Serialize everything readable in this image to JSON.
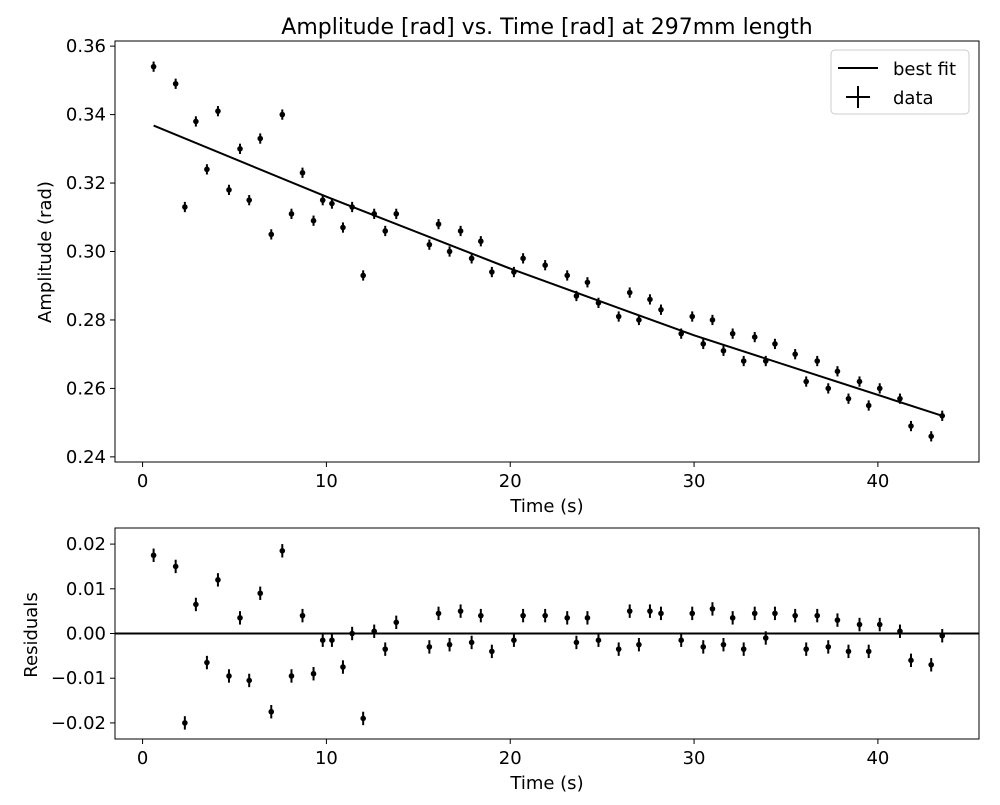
{
  "chart_data": [
    {
      "type": "scatter",
      "panel": "main",
      "title": "Amplitude [rad] vs. Time [rad] at 297mm length",
      "xlabel": "Time (s)",
      "ylabel": "Amplitude (rad)",
      "xlim": [
        -1.5,
        45.5
      ],
      "ylim": [
        0.2385,
        0.3615
      ],
      "xticks": [
        0,
        10,
        20,
        30,
        40
      ],
      "yticks": [
        0.24,
        0.26,
        0.28,
        0.3,
        0.32,
        0.34,
        0.36
      ],
      "ytick_labels": [
        "0.24",
        "0.26",
        "0.28",
        "0.30",
        "0.32",
        "0.34",
        "0.36"
      ],
      "legend": {
        "position": "top-right",
        "entries": [
          "best fit",
          "data"
        ]
      },
      "series": [
        {
          "name": "data",
          "kind": "errorbar",
          "color": "#000000",
          "yerr": 0.0015,
          "x": [
            0.6,
            1.8,
            2.3,
            2.9,
            3.5,
            4.1,
            4.7,
            5.3,
            5.8,
            6.4,
            7.0,
            7.6,
            8.1,
            8.7,
            9.3,
            9.8,
            10.3,
            10.9,
            11.4,
            12.0,
            12.6,
            13.2,
            13.8,
            15.6,
            16.1,
            16.7,
            17.3,
            17.9,
            18.4,
            19.0,
            20.2,
            20.7,
            21.9,
            23.1,
            23.6,
            24.2,
            24.8,
            25.9,
            26.5,
            27.0,
            27.6,
            28.2,
            29.3,
            29.9,
            30.5,
            31.0,
            31.6,
            32.1,
            32.7,
            33.3,
            33.9,
            34.4,
            35.5,
            36.1,
            36.7,
            37.3,
            37.8,
            38.4,
            39.0,
            39.5,
            40.1,
            41.2,
            41.8,
            42.9,
            43.5
          ],
          "y": [
            0.354,
            0.349,
            0.313,
            0.338,
            0.324,
            0.341,
            0.318,
            0.33,
            0.315,
            0.333,
            0.305,
            0.34,
            0.311,
            0.323,
            0.309,
            0.315,
            0.314,
            0.307,
            0.313,
            0.293,
            0.311,
            0.306,
            0.311,
            0.302,
            0.308,
            0.3,
            0.306,
            0.298,
            0.303,
            0.294,
            0.294,
            0.298,
            0.296,
            0.293,
            0.287,
            0.291,
            0.285,
            0.281,
            0.288,
            0.28,
            0.286,
            0.283,
            0.276,
            0.281,
            0.273,
            0.28,
            0.271,
            0.276,
            0.268,
            0.275,
            0.268,
            0.273,
            0.27,
            0.262,
            0.268,
            0.26,
            0.265,
            0.257,
            0.262,
            0.255,
            0.26,
            0.257,
            0.249,
            0.246,
            0.252
          ]
        },
        {
          "name": "best fit",
          "kind": "line",
          "color": "#000000",
          "x": [
            0.6,
            10,
            20,
            30,
            43.5
          ],
          "y": [
            0.3368,
            0.316,
            0.295,
            0.2755,
            0.252
          ]
        }
      ]
    },
    {
      "type": "scatter",
      "panel": "residuals",
      "xlabel": "Time (s)",
      "ylabel": "Residuals",
      "xlim": [
        -1.5,
        45.5
      ],
      "ylim": [
        -0.0236,
        0.0236
      ],
      "xticks": [
        0,
        10,
        20,
        30,
        40
      ],
      "yticks": [
        -0.02,
        -0.01,
        0.0,
        0.01,
        0.02
      ],
      "ytick_labels": [
        "−0.02",
        "−0.01",
        "0.00",
        "0.01",
        "0.02"
      ],
      "zero_line": 0,
      "series": [
        {
          "kind": "errorbar",
          "color": "#000000",
          "yerr": 0.0015,
          "x": [
            0.6,
            1.8,
            2.3,
            2.9,
            3.5,
            4.1,
            4.7,
            5.3,
            5.8,
            6.4,
            7.0,
            7.6,
            8.1,
            8.7,
            9.3,
            9.8,
            10.3,
            10.9,
            11.4,
            12.0,
            12.6,
            13.2,
            13.8,
            15.6,
            16.1,
            16.7,
            17.3,
            17.9,
            18.4,
            19.0,
            20.2,
            20.7,
            21.9,
            23.1,
            23.6,
            24.2,
            24.8,
            25.9,
            26.5,
            27.0,
            27.6,
            28.2,
            29.3,
            29.9,
            30.5,
            31.0,
            31.6,
            32.1,
            32.7,
            33.3,
            33.9,
            34.4,
            35.5,
            36.1,
            36.7,
            37.3,
            37.8,
            38.4,
            39.0,
            39.5,
            40.1,
            41.2,
            41.8,
            42.9,
            43.5
          ],
          "y": [
            0.0175,
            0.015,
            -0.02,
            0.0065,
            -0.0065,
            0.012,
            -0.0095,
            0.0035,
            -0.0105,
            0.009,
            -0.0175,
            0.0185,
            -0.0095,
            0.004,
            -0.009,
            -0.0015,
            -0.0015,
            -0.0075,
            0.0,
            -0.019,
            0.0005,
            -0.0035,
            0.0025,
            -0.003,
            0.0045,
            -0.0025,
            0.005,
            -0.002,
            0.004,
            -0.004,
            -0.0015,
            0.004,
            0.004,
            0.0035,
            -0.002,
            0.0035,
            -0.0015,
            -0.0035,
            0.005,
            -0.0025,
            0.005,
            0.0045,
            -0.0015,
            0.0045,
            -0.003,
            0.0055,
            -0.0025,
            0.0035,
            -0.0035,
            0.0045,
            -0.001,
            0.0045,
            0.004,
            -0.0035,
            0.004,
            -0.003,
            0.003,
            -0.004,
            0.002,
            -0.004,
            0.002,
            0.0005,
            -0.006,
            -0.007,
            -0.0005
          ]
        }
      ]
    }
  ]
}
